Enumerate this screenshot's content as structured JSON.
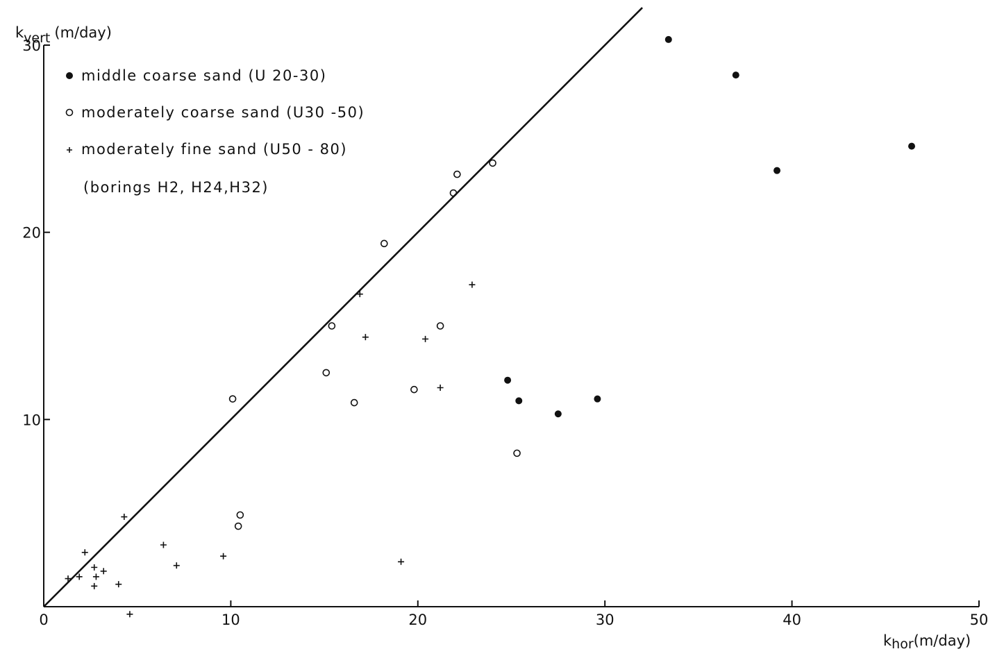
{
  "chart_data": {
    "type": "scatter",
    "title": "",
    "xlabel_main": "k",
    "xlabel_sub": "hor",
    "xlabel_unit": "(m/day)",
    "ylabel_main": "k",
    "ylabel_sub": "vert",
    "ylabel_unit": "(m/day)",
    "xlim": [
      0,
      50
    ],
    "ylim": [
      0,
      30
    ],
    "x_ticks": [
      0,
      10,
      20,
      30,
      40,
      50
    ],
    "y_ticks": [
      10,
      20,
      30
    ],
    "x_tick_labels": [
      "0",
      "10",
      "20",
      "30",
      "40",
      "50"
    ],
    "y_tick_labels": [
      "10",
      "20",
      "30"
    ],
    "grid": false,
    "legend_position": "top-left",
    "legend_note": "(borings  H2, H24,H32)",
    "reference_line": {
      "x": [
        0,
        32
      ],
      "y": [
        0,
        32
      ]
    },
    "series": [
      {
        "name": "middle  coarse  sand   (U 20-30)",
        "marker": "filled-circle",
        "x": [
          33.4,
          37.0,
          46.4,
          39.2,
          24.8,
          25.4,
          27.5,
          29.6
        ],
        "y": [
          30.3,
          28.4,
          24.6,
          23.3,
          12.1,
          11.0,
          10.3,
          11.1
        ]
      },
      {
        "name": "moderately  coarse  sand  (U30 -50)",
        "marker": "open-circle",
        "x": [
          24.0,
          22.1,
          21.9,
          18.2,
          15.4,
          21.2,
          15.1,
          10.1,
          16.6,
          19.8,
          25.3,
          10.5,
          10.4
        ],
        "y": [
          23.7,
          23.1,
          22.1,
          19.4,
          15.0,
          15.0,
          12.5,
          11.1,
          10.9,
          11.6,
          8.2,
          4.9,
          4.3
        ]
      },
      {
        "name": "moderately  fine  sand  (U50 - 80)",
        "marker": "plus",
        "x": [
          22.9,
          16.9,
          17.2,
          20.4,
          21.2,
          4.3,
          6.4,
          7.1,
          9.6,
          19.1,
          2.2,
          2.7,
          3.2,
          2.8,
          1.9,
          1.3,
          2.7,
          4.0,
          4.6
        ],
        "y": [
          17.2,
          16.7,
          14.4,
          14.3,
          11.7,
          4.8,
          3.3,
          2.2,
          2.7,
          2.4,
          2.9,
          2.1,
          1.9,
          1.6,
          1.6,
          1.5,
          1.1,
          1.2,
          -0.4
        ]
      }
    ]
  }
}
